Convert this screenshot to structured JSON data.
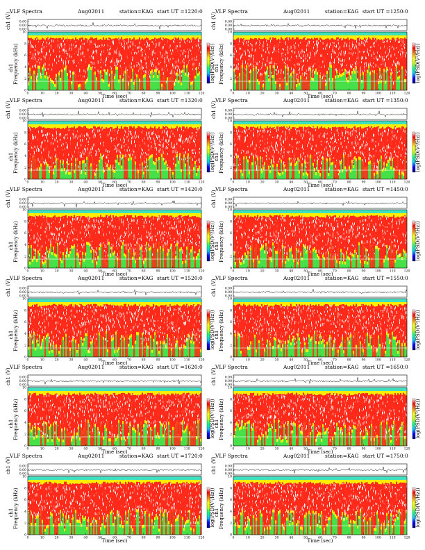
{
  "figure": {
    "rows": 6,
    "columns": 2
  },
  "panel_text": {
    "title_prefix": "VLF Spectra",
    "month_year": "Aug02011",
    "station": "station=KAG",
    "start_label": "start",
    "ut_label": "UT",
    "channel_label": "ch1",
    "wave_axis_label": "ch1 (V)",
    "spectrogram_axis_label": "Frequency (kHz)",
    "time_axis_label": "Time (sec)",
    "colorbar_label": "log(PSD(V²/Hz))"
  },
  "panels": [
    {
      "row": 1,
      "column": "left",
      "start_ut": "=1220:0"
    },
    {
      "row": 1,
      "column": "right",
      "start_ut": "=1250:0"
    },
    {
      "row": 2,
      "column": "left",
      "start_ut": "=1320:0"
    },
    {
      "row": 2,
      "column": "right",
      "start_ut": "=1350:0"
    },
    {
      "row": 3,
      "column": "left",
      "start_ut": "=1420:0"
    },
    {
      "row": 3,
      "column": "right",
      "start_ut": "=1450:0"
    },
    {
      "row": 4,
      "column": "left",
      "start_ut": "=1520:0"
    },
    {
      "row": 4,
      "column": "right",
      "start_ut": "=1550:0"
    },
    {
      "row": 5,
      "column": "left",
      "start_ut": "=1620:0"
    },
    {
      "row": 5,
      "column": "right",
      "start_ut": "=1650:0"
    },
    {
      "row": 6,
      "column": "left",
      "start_ut": "=1720:0"
    },
    {
      "row": 6,
      "column": "right",
      "start_ut": "=1750:0"
    }
  ],
  "chart_data": {
    "type": "heatmap",
    "description_of_layout": "grid of 12 waveform + spectrogram panels",
    "waveform": {
      "ylabel": "ch1 (V)",
      "yticks": [
        "0.00",
        "0.00",
        "0.00"
      ]
    },
    "spectrogram": {
      "xlabel": "Time (sec)",
      "ylabel": "Frequency (kHz)",
      "xlim": [
        0,
        120
      ],
      "ylim": [
        0,
        10
      ],
      "xticks": [
        0,
        10,
        20,
        30,
        40,
        50,
        60,
        70,
        80,
        90,
        100,
        110,
        120
      ],
      "yticks": [
        0,
        2,
        4,
        6,
        8,
        10
      ]
    },
    "colorbar": {
      "label": "log(PSD(V²/Hz))",
      "colors": [
        "#000080",
        "#0000ff",
        "#00c8ff",
        "#00ff80",
        "#c8ff00",
        "#ffff00",
        "#ff8000",
        "#ff0000",
        "#ffffff"
      ]
    },
    "colors": {
      "top_band": "#3fe0c0",
      "low_band": "#48e048",
      "mid_band": "#ff2a1a",
      "speckle": "#ffffff",
      "transition": "#ffee00"
    }
  }
}
